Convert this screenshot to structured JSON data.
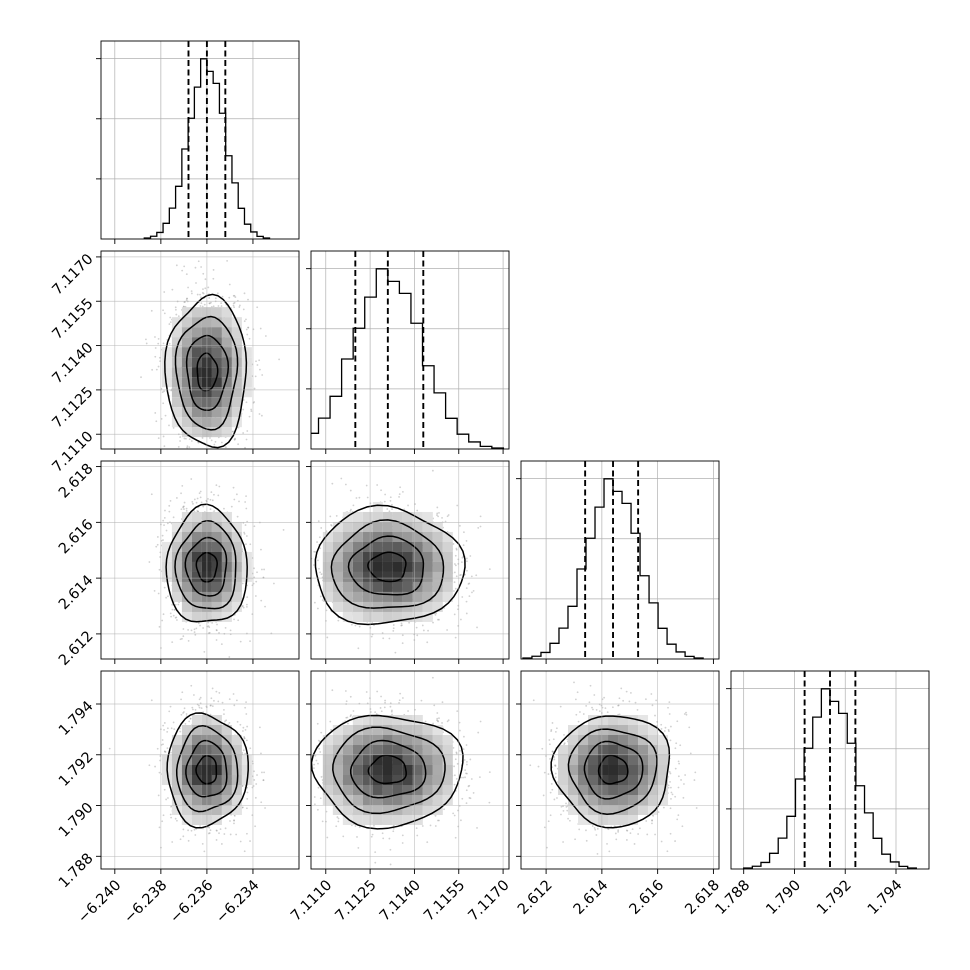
{
  "chart_data": {
    "type": "corner",
    "title": "",
    "parameters": [
      {
        "range": [
          -6.2406,
          -6.232
        ],
        "ticks": [
          -6.24,
          -6.238,
          -6.236,
          -6.234
        ],
        "tick_labels": [
          "−6.240",
          "−6.238",
          "−6.236",
          "−6.234"
        ],
        "median": -6.236,
        "quantile_16": -6.2368,
        "quantile_84": -6.2352,
        "sigma": 0.0008
      },
      {
        "range": [
          7.1105,
          7.1172
        ],
        "ticks": [
          7.111,
          7.1125,
          7.114,
          7.1155,
          7.117
        ],
        "tick_labels": [
          "7.1110",
          "7.1125",
          "7.1140",
          "7.1155",
          "7.1170"
        ],
        "median": 7.1131,
        "quantile_16": 7.112,
        "quantile_84": 7.1143,
        "sigma": 0.00115
      },
      {
        "range": [
          2.6111,
          2.6182
        ],
        "ticks": [
          2.612,
          2.614,
          2.616,
          2.618
        ],
        "tick_labels": [
          "2.612",
          "2.614",
          "2.616",
          "2.618"
        ],
        "median": 2.6144,
        "quantile_16": 2.6134,
        "quantile_84": 2.6153,
        "sigma": 0.00095
      },
      {
        "range": [
          1.7875,
          1.7953
        ],
        "ticks": [
          1.788,
          1.79,
          1.792,
          1.794
        ],
        "tick_labels": [
          "1.788",
          "1.790",
          "1.792",
          "1.794"
        ],
        "median": 1.7914,
        "quantile_16": 1.7904,
        "quantile_84": 1.7924,
        "sigma": 0.001
      }
    ],
    "histogram_style": "step",
    "histogram_bins": 20,
    "quantile_lines": "dashed",
    "contour_levels": 4,
    "scatter": "light gray points",
    "grid": true,
    "colors": {
      "line": "#000000",
      "grid": "#b0b0b0",
      "points": "#9a9a9a"
    }
  }
}
